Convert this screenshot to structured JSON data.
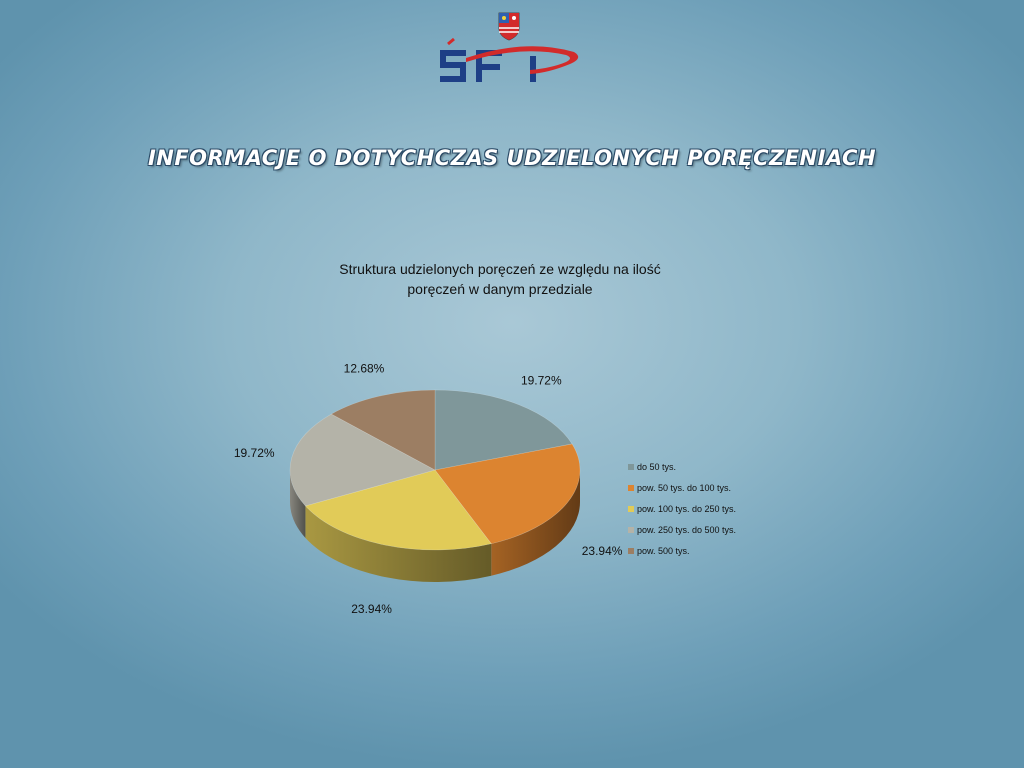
{
  "slide": {
    "title": "INFORMACJE O DOTYCHCZAS UDZIELONYCH PORĘCZENIACH",
    "logo_text": "ŚFP"
  },
  "chart_data": {
    "type": "pie",
    "title_lines": [
      "Struktura udzielonych poręczeń ze względu na ilość",
      "poręczeń w danym przedziale"
    ],
    "categories": [
      "do 50 tys.",
      "pow. 50 tys. do 100 tys.",
      "pow. 100 tys. do 250 tys.",
      "pow. 250 tys. do 500 tys.",
      "pow. 500 tys."
    ],
    "values": [
      19.72,
      23.94,
      23.94,
      19.72,
      12.68
    ],
    "data_labels": [
      "19.72%",
      "23.94%",
      "23.94%",
      "19.72%",
      "12.68%"
    ],
    "colors": [
      "#7f979a",
      "#dc8430",
      "#e1cb58",
      "#b4b3a8",
      "#9c7e63"
    ],
    "style": "3d",
    "legend_position": "right"
  }
}
